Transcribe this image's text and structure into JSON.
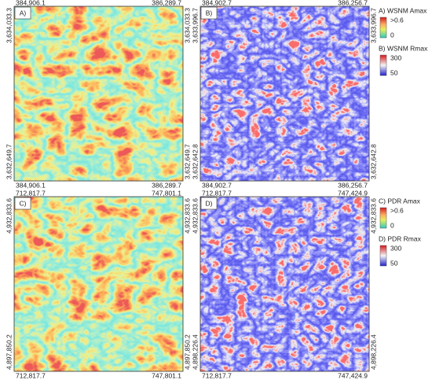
{
  "panels": [
    {
      "label": "A)",
      "top_left": "384,906.1",
      "top_right": "386,289.7",
      "bottom_left": "384,906.1",
      "bottom_right": "386,289.7",
      "left_top": "3,634,033.3",
      "left_bottom": "3,632,649.7",
      "right_top": "3,634,033.3",
      "right_bottom": "3,632,649.7"
    },
    {
      "label": "B)",
      "top_left": "384,902.7",
      "top_right": "386,256.7",
      "bottom_left": "384,902.7",
      "bottom_right": "386,256.7",
      "left_top": "3,633,996.7",
      "left_bottom": "3,632,642.8",
      "right_top": "3,633,996.7",
      "right_bottom": "3,632,642.8"
    },
    {
      "label": "C)",
      "top_left": "712,817.7",
      "top_right": "747,801.1",
      "bottom_left": "712,817.7",
      "bottom_right": "747,801.1",
      "left_top": "4,932,833.6",
      "left_bottom": "4,897,850.2",
      "right_top": "4,932,833.6",
      "right_bottom": "4,897,850.2"
    },
    {
      "label": "D)",
      "top_left": "712,817.7",
      "top_right": "747,424.9",
      "bottom_left": "712,817.7",
      "bottom_right": "747,424.9",
      "left_top": "4,932,833.6",
      "left_bottom": "4,898,226.4",
      "right_top": "4,932,833.6",
      "right_bottom": "4,898,226.4"
    }
  ],
  "legends": [
    {
      "title": "A) WSNM Amax",
      "max": ">0.6",
      "min": "0"
    },
    {
      "title": "B) WSNM Rmax",
      "max": "300",
      "min": "50"
    },
    {
      "title": "C) PDR Amax",
      "max": ">0.6",
      "min": "0"
    },
    {
      "title": "D) PDR Rmax",
      "max": "300",
      "min": "50"
    }
  ]
}
